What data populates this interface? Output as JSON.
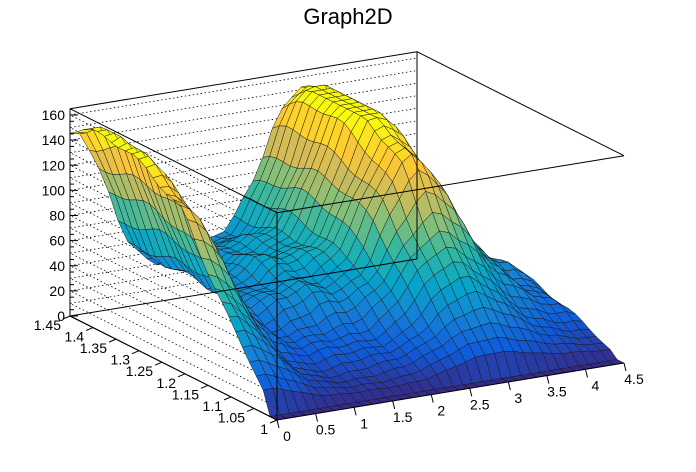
{
  "chart_data": {
    "type": "surface",
    "title": "Graph2D",
    "xlabel": "",
    "ylabel": "",
    "zlabel": "",
    "xlim": [
      0,
      4.5
    ],
    "ylim": [
      1,
      1.45
    ],
    "zlim": [
      0,
      165
    ],
    "x_ticks": [
      "0",
      "0.5",
      "1",
      "1.5",
      "2",
      "2.5",
      "3",
      "3.5",
      "4",
      "4.5"
    ],
    "y_ticks": [
      "1",
      "1.05",
      "1.1",
      "1.15",
      "1.2",
      "1.25",
      "1.3",
      "1.35",
      "1.4",
      "1.45"
    ],
    "z_ticks": [
      "0",
      "20",
      "40",
      "60",
      "80",
      "100",
      "120",
      "140",
      "160"
    ],
    "grid": true,
    "colormap": [
      "#352a87",
      "#0f5cdd",
      "#1481d6",
      "#06a4ca",
      "#2eb7a4",
      "#87bf77",
      "#d1bb59",
      "#fec832",
      "#f9fb0e"
    ],
    "surface_shape": "two ridges: a ridge at x≈0 peaking ≈140 near y≈1.35 and a ridge at x≈3 peaking ≈150 near y≈1.35, with a deep valley between and steep walls falling to 0 at low y"
  }
}
